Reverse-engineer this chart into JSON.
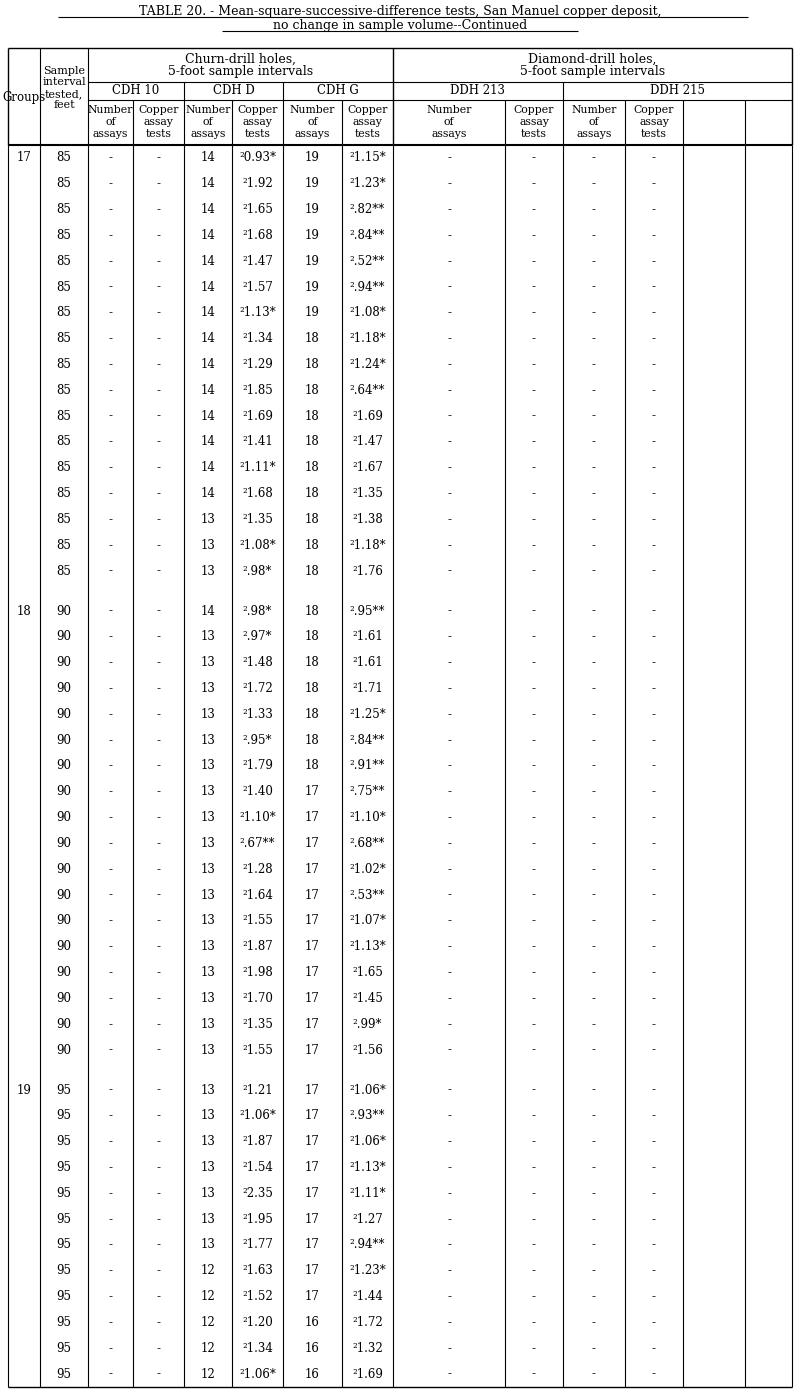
{
  "title_line1": "TABLE 20. - Mean-square-successive-difference tests, San Manuel copper deposit,",
  "title_line2": "no change in sample volume--Continued",
  "rows": [
    [
      "17",
      "85",
      "-",
      "-",
      "14",
      "²0.93*",
      "19",
      "²1.15*",
      "-",
      "-",
      "-",
      "-"
    ],
    [
      "",
      "85",
      "-",
      "-",
      "14",
      "²1.92",
      "19",
      "²1.23*",
      "-",
      "-",
      "-",
      "-"
    ],
    [
      "",
      "85",
      "-",
      "-",
      "14",
      "²1.65",
      "19",
      "².82**",
      "-",
      "-",
      "-",
      "-"
    ],
    [
      "",
      "85",
      "-",
      "-",
      "14",
      "²1.68",
      "19",
      "².84**",
      "-",
      "-",
      "-",
      "-"
    ],
    [
      "",
      "85",
      "-",
      "-",
      "14",
      "²1.47",
      "19",
      "².52**",
      "-",
      "-",
      "-",
      "-"
    ],
    [
      "",
      "85",
      "-",
      "-",
      "14",
      "²1.57",
      "19",
      "².94**",
      "-",
      "-",
      "-",
      "-"
    ],
    [
      "",
      "85",
      "-",
      "-",
      "14",
      "²1.13*",
      "19",
      "²1.08*",
      "-",
      "-",
      "-",
      "-"
    ],
    [
      "",
      "85",
      "-",
      "-",
      "14",
      "²1.34",
      "18",
      "²1.18*",
      "-",
      "-",
      "-",
      "-"
    ],
    [
      "",
      "85",
      "-",
      "-",
      "14",
      "²1.29",
      "18",
      "²1.24*",
      "-",
      "-",
      "-",
      "-"
    ],
    [
      "",
      "85",
      "-",
      "-",
      "14",
      "²1.85",
      "18",
      "².64**",
      "-",
      "-",
      "-",
      "-"
    ],
    [
      "",
      "85",
      "-",
      "-",
      "14",
      "²1.69",
      "18",
      "²1.69",
      "-",
      "-",
      "-",
      "-"
    ],
    [
      "",
      "85",
      "-",
      "-",
      "14",
      "²1.41",
      "18",
      "²1.47",
      "-",
      "-",
      "-",
      "-"
    ],
    [
      "",
      "85",
      "-",
      "-",
      "14",
      "²1.11*",
      "18",
      "²1.67",
      "-",
      "-",
      "-",
      "-"
    ],
    [
      "",
      "85",
      "-",
      "-",
      "14",
      "²1.68",
      "18",
      "²1.35",
      "-",
      "-",
      "-",
      "-"
    ],
    [
      "",
      "85",
      "-",
      "-",
      "13",
      "²1.35",
      "18",
      "²1.38",
      "-",
      "-",
      "-",
      "-"
    ],
    [
      "",
      "85",
      "-",
      "-",
      "13",
      "²1.08*",
      "18",
      "²1.18*",
      "-",
      "-",
      "-",
      "-"
    ],
    [
      "",
      "85",
      "-",
      "-",
      "13",
      "².98*",
      "18",
      "²1.76",
      "-",
      "-",
      "-",
      "-"
    ],
    [
      "18",
      "90",
      "-",
      "-",
      "14",
      "².98*",
      "18",
      "².95**",
      "-",
      "-",
      "-",
      "-"
    ],
    [
      "",
      "90",
      "-",
      "-",
      "13",
      "².97*",
      "18",
      "²1.61",
      "-",
      "-",
      "-",
      "-"
    ],
    [
      "",
      "90",
      "-",
      "-",
      "13",
      "²1.48",
      "18",
      "²1.61",
      "-",
      "-",
      "-",
      "-"
    ],
    [
      "",
      "90",
      "-",
      "-",
      "13",
      "²1.72",
      "18",
      "²1.71",
      "-",
      "-",
      "-",
      "-"
    ],
    [
      "",
      "90",
      "-",
      "-",
      "13",
      "²1.33",
      "18",
      "²1.25*",
      "-",
      "-",
      "-",
      "-"
    ],
    [
      "",
      "90",
      "-",
      "-",
      "13",
      "².95*",
      "18",
      "².84**",
      "-",
      "-",
      "-",
      "-"
    ],
    [
      "",
      "90",
      "-",
      "-",
      "13",
      "²1.79",
      "18",
      "².91**",
      "-",
      "-",
      "-",
      "-"
    ],
    [
      "",
      "90",
      "-",
      "-",
      "13",
      "²1.40",
      "17",
      "².75**",
      "-",
      "-",
      "-",
      "-"
    ],
    [
      "",
      "90",
      "-",
      "-",
      "13",
      "²1.10*",
      "17",
      "²1.10*",
      "-",
      "-",
      "-",
      "-"
    ],
    [
      "",
      "90",
      "-",
      "-",
      "13",
      "².67**",
      "17",
      "².68**",
      "-",
      "-",
      "-",
      "-"
    ],
    [
      "",
      "90",
      "-",
      "-",
      "13",
      "²1.28",
      "17",
      "²1.02*",
      "-",
      "-",
      "-",
      "-"
    ],
    [
      "",
      "90",
      "-",
      "-",
      "13",
      "²1.64",
      "17",
      "².53**",
      "-",
      "-",
      "-",
      "-"
    ],
    [
      "",
      "90",
      "-",
      "-",
      "13",
      "²1.55",
      "17",
      "²1.07*",
      "-",
      "-",
      "-",
      "-"
    ],
    [
      "",
      "90",
      "-",
      "-",
      "13",
      "²1.87",
      "17",
      "²1.13*",
      "-",
      "-",
      "-",
      "-"
    ],
    [
      "",
      "90",
      "-",
      "-",
      "13",
      "²1.98",
      "17",
      "²1.65",
      "-",
      "-",
      "-",
      "-"
    ],
    [
      "",
      "90",
      "-",
      "-",
      "13",
      "²1.70",
      "17",
      "²1.45",
      "-",
      "-",
      "-",
      "-"
    ],
    [
      "",
      "90",
      "-",
      "-",
      "13",
      "²1.35",
      "17",
      "².99*",
      "-",
      "-",
      "-",
      "-"
    ],
    [
      "",
      "90",
      "-",
      "-",
      "13",
      "²1.55",
      "17",
      "²1.56",
      "-",
      "-",
      "-",
      "-"
    ],
    [
      "19",
      "95",
      "-",
      "-",
      "13",
      "²1.21",
      "17",
      "²1.06*",
      "-",
      "-",
      "-",
      "-"
    ],
    [
      "",
      "95",
      "-",
      "-",
      "13",
      "²1.06*",
      "17",
      "².93**",
      "-",
      "-",
      "-",
      "-"
    ],
    [
      "",
      "95",
      "-",
      "-",
      "13",
      "²1.87",
      "17",
      "²1.06*",
      "-",
      "-",
      "-",
      "-"
    ],
    [
      "",
      "95",
      "-",
      "-",
      "13",
      "²1.54",
      "17",
      "²1.13*",
      "-",
      "-",
      "-",
      "-"
    ],
    [
      "",
      "95",
      "-",
      "-",
      "13",
      "²2.35",
      "17",
      "²1.11*",
      "-",
      "-",
      "-",
      "-"
    ],
    [
      "",
      "95",
      "-",
      "-",
      "13",
      "²1.95",
      "17",
      "²1.27",
      "-",
      "-",
      "-",
      "-"
    ],
    [
      "",
      "95",
      "-",
      "-",
      "13",
      "²1.77",
      "17",
      "².94**",
      "-",
      "-",
      "-",
      "-"
    ],
    [
      "",
      "95",
      "-",
      "-",
      "12",
      "²1.63",
      "17",
      "²1.23*",
      "-",
      "-",
      "-",
      "-"
    ],
    [
      "",
      "95",
      "-",
      "-",
      "12",
      "²1.52",
      "17",
      "²1.44",
      "-",
      "-",
      "-",
      "-"
    ],
    [
      "",
      "95",
      "-",
      "-",
      "12",
      "²1.20",
      "16",
      "²1.72",
      "-",
      "-",
      "-",
      "-"
    ],
    [
      "",
      "95",
      "-",
      "-",
      "12",
      "²1.34",
      "16",
      "²1.32",
      "-",
      "-",
      "-",
      "-"
    ],
    [
      "",
      "95",
      "-",
      "-",
      "12",
      "²1.06*",
      "16",
      "²1.69",
      "-",
      "-",
      "-",
      "-"
    ]
  ],
  "bg_color": "#ffffff",
  "text_color": "#000000",
  "line_color": "#000000"
}
